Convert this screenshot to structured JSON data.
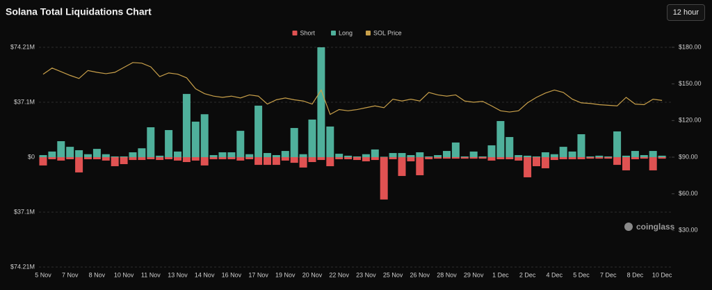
{
  "interval_button": "12 hour",
  "watermark": "coinglass",
  "chart_data": {
    "type": "bar",
    "title": "Solana Total Liquidations Chart",
    "categories": [
      "5 Nov",
      null,
      null,
      "7 Nov",
      null,
      null,
      "8 Nov",
      null,
      null,
      "10 Nov",
      null,
      null,
      "11 Nov",
      null,
      null,
      "13 Nov",
      null,
      null,
      "14 Nov",
      null,
      null,
      "16 Nov",
      null,
      null,
      "17 Nov",
      null,
      null,
      "19 Nov",
      null,
      null,
      "20 Nov",
      null,
      null,
      "22 Nov",
      null,
      null,
      "23 Nov",
      null,
      null,
      "25 Nov",
      null,
      null,
      "26 Nov",
      null,
      null,
      "28 Nov",
      null,
      null,
      "29 Nov",
      null,
      null,
      "1 Dec",
      null,
      null,
      "2 Dec",
      null,
      null,
      "4 Dec",
      null,
      null,
      "5 Dec",
      null,
      null,
      "7 Dec",
      null,
      null,
      "8 Dec",
      null,
      null,
      "10 Dec"
    ],
    "series": [
      {
        "name": "Short",
        "color": "#e05252",
        "values": [
          -5.6,
          -1.4,
          -2.3,
          -1.4,
          -10.3,
          -1.4,
          -1.4,
          -2.3,
          -6.1,
          -4.7,
          -1.9,
          -1.9,
          -1.4,
          -1.9,
          -1.4,
          -2.3,
          -3.3,
          -2.3,
          -5.6,
          -1.4,
          -1.4,
          -1.4,
          -2.3,
          -1.4,
          -5.2,
          -5.2,
          -5.2,
          -2.3,
          -3.8,
          -7,
          -3.3,
          -1.9,
          -6.1,
          -1.4,
          -1.4,
          -1.9,
          -2.8,
          -1.9,
          -28.6,
          -1.4,
          -12.7,
          -2.8,
          -12.2,
          -1.4,
          -1,
          -1,
          -1,
          -1,
          -1,
          -1,
          -2.3,
          -1.4,
          -1.4,
          -2.3,
          -13.6,
          -6.1,
          -7.5,
          -1.9,
          -1.4,
          -1.4,
          -1.4,
          -1,
          -1,
          -1,
          -5.2,
          -8.9,
          -1.4,
          -1,
          -8.9,
          -1
        ]
      },
      {
        "name": "Long",
        "color": "#4fb09b",
        "values": [
          1.4,
          3.8,
          10.8,
          7,
          4.7,
          2,
          5.6,
          2,
          0.5,
          0.5,
          3.3,
          6,
          20.2,
          1,
          18.3,
          3.8,
          42.7,
          24,
          29,
          1.4,
          3.3,
          3.3,
          17.8,
          2,
          34.8,
          2.8,
          1.4,
          4.2,
          19.7,
          2,
          25.4,
          74.21,
          20.7,
          2.3,
          1,
          0.5,
          2,
          5.2,
          0.3,
          2.8,
          2.8,
          1.4,
          3.3,
          0.5,
          1.4,
          4.2,
          9.9,
          0.5,
          3.8,
          0.5,
          8,
          24.4,
          13.6,
          1.4,
          1,
          0.5,
          3.3,
          2,
          7,
          3.8,
          15.5,
          0.5,
          1,
          0.5,
          17.4,
          1,
          4.2,
          1.4,
          4.2,
          1
        ]
      },
      {
        "name": "SOL Price",
        "color": "#c9a04a",
        "type": "line",
        "axis": "y2",
        "values": [
          157.9,
          163,
          160,
          157,
          154.5,
          161,
          159.5,
          158.4,
          159.5,
          163.5,
          167.5,
          167,
          164,
          156,
          159,
          158,
          155,
          146,
          142,
          140,
          139,
          140,
          138.5,
          141,
          140,
          133.5,
          137,
          138.5,
          137,
          136,
          133.5,
          145,
          125,
          129,
          128,
          129,
          130.5,
          132,
          130.5,
          137.5,
          136,
          137.5,
          136,
          143,
          141,
          140,
          141,
          136,
          135,
          135.7,
          132,
          128,
          127,
          128,
          134.5,
          139,
          142.5,
          145,
          143,
          137.5,
          134.5,
          134,
          133,
          132.5,
          132,
          139,
          133.5,
          133,
          137.5,
          136.5
        ]
      }
    ],
    "ylim": [
      -74.21,
      74.21
    ],
    "yticks": [
      {
        "value": 74.21,
        "label": "$74.21M"
      },
      {
        "value": 37.1,
        "label": "$37.1M"
      },
      {
        "value": 0,
        "label": "$0"
      },
      {
        "value": -37.1,
        "label": "$37.1M"
      },
      {
        "value": -74.21,
        "label": "$74.21M"
      }
    ],
    "y2lim": [
      0,
      180
    ],
    "y2ticks": [
      {
        "value": 180,
        "label": "$180.00"
      },
      {
        "value": 150,
        "label": "$150.00"
      },
      {
        "value": 120,
        "label": "$120.00"
      },
      {
        "value": 90,
        "label": "$90.00"
      },
      {
        "value": 60,
        "label": "$60.00"
      },
      {
        "value": 30,
        "label": "$30.00"
      }
    ],
    "grid": true,
    "legend": "top"
  }
}
